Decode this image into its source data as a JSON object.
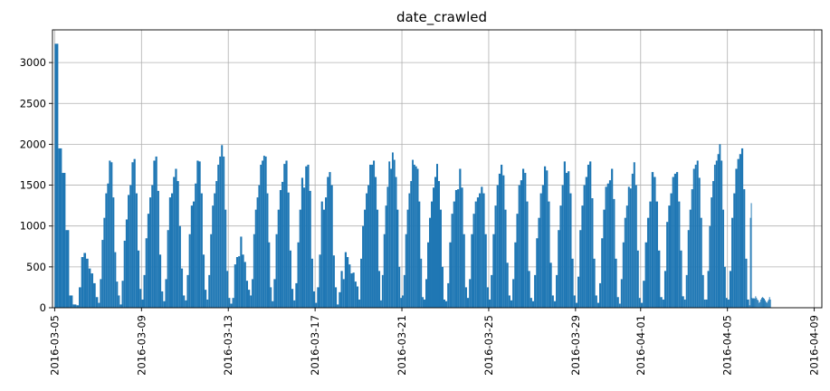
{
  "chart_data": {
    "type": "bar",
    "title": "date_crawled",
    "xlabel": "",
    "ylabel": "",
    "grid": true,
    "color": "#1f77b4",
    "x_start": "2016-03-05",
    "x_end": "2016-04-09",
    "ylim": [
      0,
      3400
    ],
    "y_ticks": [
      "0",
      "500",
      "1000",
      "1500",
      "2000",
      "2500",
      "3000"
    ],
    "x_ticks": [
      "2016-03-05",
      "2016-03-09",
      "2016-03-13",
      "2016-03-17",
      "2016-03-21",
      "2016-03-25",
      "2016-03-29",
      "2016-04-01",
      "2016-04-05",
      "2016-04-09"
    ],
    "days": [
      {
        "date": "2016-03-05",
        "hours": [
          3230,
          1950,
          1650,
          950,
          150,
          40
        ]
      },
      {
        "date": "2016-03-06",
        "hours": [
          30,
          250,
          620,
          670,
          600,
          480,
          420,
          300,
          130
        ]
      },
      {
        "date": "2016-03-07",
        "hours": [
          60,
          350,
          830,
          1100,
          1400,
          1520,
          1800,
          1780,
          1350,
          680,
          320,
          150
        ]
      },
      {
        "date": "2016-03-08",
        "hours": [
          40,
          330,
          820,
          1080,
          1380,
          1500,
          1780,
          1820,
          1400,
          700,
          230
        ]
      },
      {
        "date": "2016-03-09",
        "hours": [
          100,
          400,
          850,
          1150,
          1350,
          1500,
          1800,
          1850,
          1430,
          650,
          200
        ]
      },
      {
        "date": "2016-03-10",
        "hours": [
          80,
          350,
          950,
          1350,
          1400,
          1600,
          1700,
          1550,
          1000,
          480,
          150
        ]
      },
      {
        "date": "2016-03-11",
        "hours": [
          90,
          400,
          900,
          1250,
          1300,
          1520,
          1800,
          1790,
          1400,
          650,
          220
        ]
      },
      {
        "date": "2016-03-12",
        "hours": [
          100,
          400,
          900,
          1250,
          1400,
          1550,
          1750,
          1850,
          1990,
          1850,
          1200,
          450
        ]
      },
      {
        "date": "2016-03-13",
        "hours": [
          120,
          50,
          120,
          530,
          620,
          630,
          870,
          650,
          560,
          330,
          220
        ]
      },
      {
        "date": "2016-03-14",
        "hours": [
          150,
          350,
          900,
          1200,
          1350,
          1500,
          1750,
          1800,
          1860,
          1850,
          1400,
          800,
          250
        ]
      },
      {
        "date": "2016-03-15",
        "hours": [
          80,
          350,
          900,
          1200,
          1440,
          1540,
          1760,
          1800,
          1410,
          700,
          230
        ]
      },
      {
        "date": "2016-03-16",
        "hours": [
          90,
          300,
          800,
          1200,
          1590,
          1470,
          1730,
          1750,
          1430,
          600,
          200
        ]
      },
      {
        "date": "2016-03-17",
        "hours": [
          60,
          250,
          650,
          1300,
          1200,
          1350,
          1600,
          1660,
          1500,
          640,
          250
        ]
      },
      {
        "date": "2016-03-18",
        "hours": [
          40,
          190,
          450,
          350,
          680,
          620,
          530,
          420,
          430,
          320,
          260
        ]
      },
      {
        "date": "2016-03-19",
        "hours": [
          100,
          600,
          1000,
          1200,
          1400,
          1500,
          1750,
          1750,
          1800,
          1600,
          1200,
          450
        ]
      },
      {
        "date": "2016-03-20",
        "hours": [
          90,
          400,
          900,
          1250,
          1480,
          1790,
          1700,
          1900,
          1810,
          1600,
          1200,
          500,
          120
        ]
      },
      {
        "date": "2016-03-21",
        "hours": [
          150,
          400,
          900,
          1200,
          1400,
          1550,
          1810,
          1750,
          1730,
          1700,
          1300,
          600,
          130
        ]
      },
      {
        "date": "2016-03-22",
        "hours": [
          100,
          350,
          800,
          1100,
          1300,
          1470,
          1600,
          1760,
          1550,
          1200,
          500,
          100
        ]
      },
      {
        "date": "2016-03-23",
        "hours": [
          80,
          300,
          800,
          1150,
          1300,
          1440,
          1450,
          1700,
          1470,
          900,
          250
        ]
      },
      {
        "date": "2016-03-24",
        "hours": [
          120,
          350,
          900,
          1150,
          1300,
          1350,
          1400,
          1480,
          1400,
          900,
          250
        ]
      },
      {
        "date": "2016-03-25",
        "hours": [
          100,
          400,
          900,
          1250,
          1500,
          1640,
          1750,
          1620,
          1200,
          550,
          150
        ]
      },
      {
        "date": "2016-03-26",
        "hours": [
          90,
          350,
          800,
          1150,
          1500,
          1560,
          1700,
          1650,
          1300,
          450,
          120
        ]
      },
      {
        "date": "2016-03-27",
        "hours": [
          80,
          400,
          850,
          1100,
          1400,
          1500,
          1730,
          1680,
          1300,
          550,
          150
        ]
      },
      {
        "date": "2016-03-28",
        "hours": [
          80,
          400,
          950,
          1250,
          1500,
          1790,
          1650,
          1670,
          1400,
          600,
          150
        ]
      },
      {
        "date": "2016-03-29",
        "hours": [
          60,
          380,
          950,
          1250,
          1500,
          1600,
          1750,
          1790,
          1340,
          600,
          150
        ]
      },
      {
        "date": "2016-03-30",
        "hours": [
          60,
          300,
          850,
          1200,
          1480,
          1520,
          1560,
          1700,
          1330,
          600,
          130
        ]
      },
      {
        "date": "2016-03-31",
        "hours": [
          50,
          350,
          800,
          1100,
          1250,
          1480,
          1460,
          1640,
          1780,
          1500,
          700,
          120
        ]
      },
      {
        "date": "2016-04-01",
        "hours": [
          60,
          330,
          800,
          1100,
          1300,
          1660,
          1600,
          1300,
          700,
          130
        ]
      },
      {
        "date": "2016-04-02",
        "hours": [
          100,
          450,
          1050,
          1250,
          1400,
          1600,
          1640,
          1660,
          1300,
          700,
          140
        ]
      },
      {
        "date": "2016-04-03",
        "hours": [
          100,
          400,
          950,
          1200,
          1450,
          1700,
          1750,
          1800,
          1590,
          1100,
          400,
          100
        ]
      },
      {
        "date": "2016-04-04",
        "hours": [
          100,
          450,
          1000,
          1350,
          1550,
          1750,
          1800,
          1880,
          2000,
          1800,
          1200,
          500,
          120
        ]
      },
      {
        "date": "2016-04-05",
        "hours": [
          100,
          450,
          1100,
          1400,
          1700,
          1820,
          1880,
          1950,
          1450,
          600,
          100
        ]
      },
      {
        "date": "2016-04-06",
        "hours": [
          30,
          1100,
          1280,
          120,
          110,
          120,
          110,
          140,
          120,
          100,
          90,
          60,
          70,
          100,
          120,
          130,
          120,
          110,
          90,
          70,
          60,
          80,
          100,
          130,
          100
        ]
      }
    ]
  }
}
